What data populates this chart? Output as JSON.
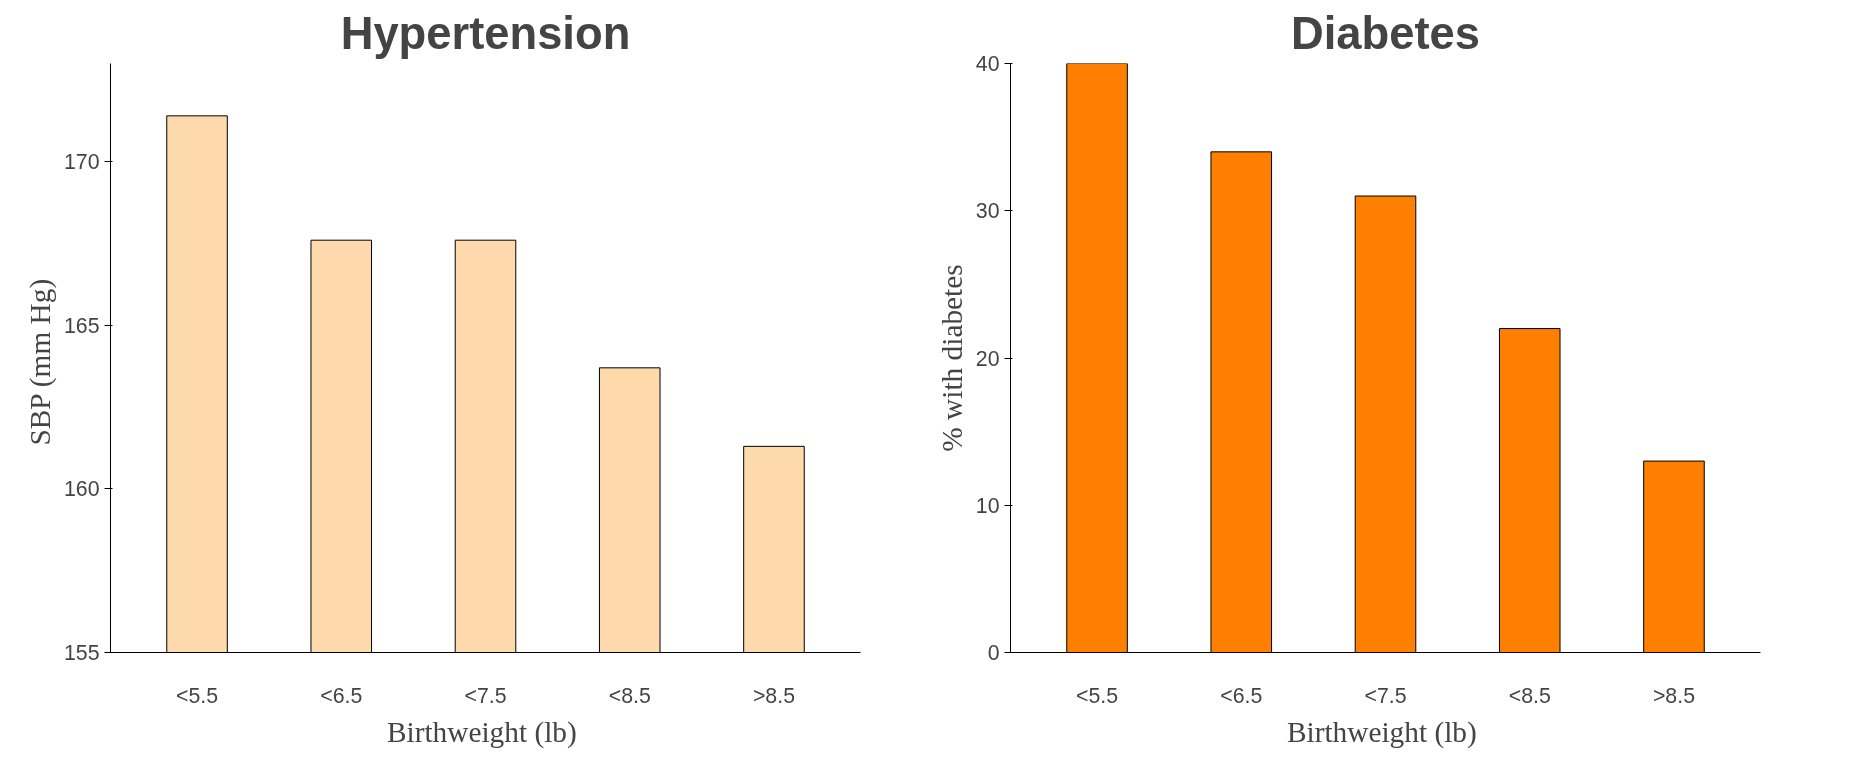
{
  "chart_data": [
    {
      "type": "bar",
      "title": "Hypertension",
      "xlabel": "Birthweight  (lb)",
      "ylabel": "SBP  (mm Hg)",
      "categories": [
        "<5.5",
        "<6.5",
        "<7.5",
        "<8.5",
        ">8.5"
      ],
      "values": [
        171.4,
        167.6,
        167.6,
        163.7,
        161.3
      ],
      "color": "#fdd9ab",
      "ylim": [
        155,
        173
      ],
      "yticks": [
        155,
        160,
        165,
        170
      ]
    },
    {
      "type": "bar",
      "title": "Diabetes",
      "xlabel": "Birthweight  (lb)",
      "ylabel": "% with diabetes",
      "categories": [
        "<5.5",
        "<6.5",
        "<7.5",
        "<8.5",
        ">8.5"
      ],
      "values": [
        40,
        34,
        31,
        22,
        13
      ],
      "color": "#ff7f00",
      "ylim": [
        0,
        40
      ],
      "yticks": [
        0,
        10,
        20,
        30,
        40
      ]
    }
  ]
}
